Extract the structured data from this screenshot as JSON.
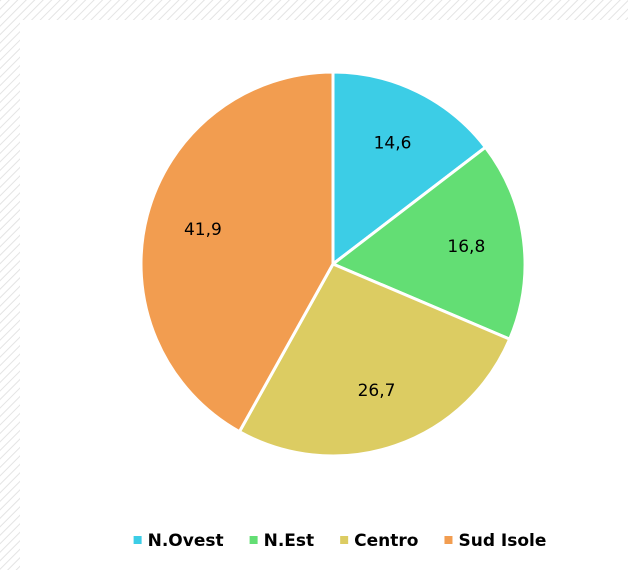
{
  "chart_data": {
    "type": "pie",
    "categories": [
      "N.Ovest",
      "N.Est",
      "Centro",
      "Sud Isole"
    ],
    "values": [
      14.6,
      16.8,
      26.7,
      41.9
    ],
    "value_labels": [
      "14,6",
      "16,8",
      "26,7",
      "41,9"
    ],
    "colors": [
      "#3ccde6",
      "#63de74",
      "#dccc62",
      "#f29d50"
    ],
    "legend": "bottom"
  }
}
